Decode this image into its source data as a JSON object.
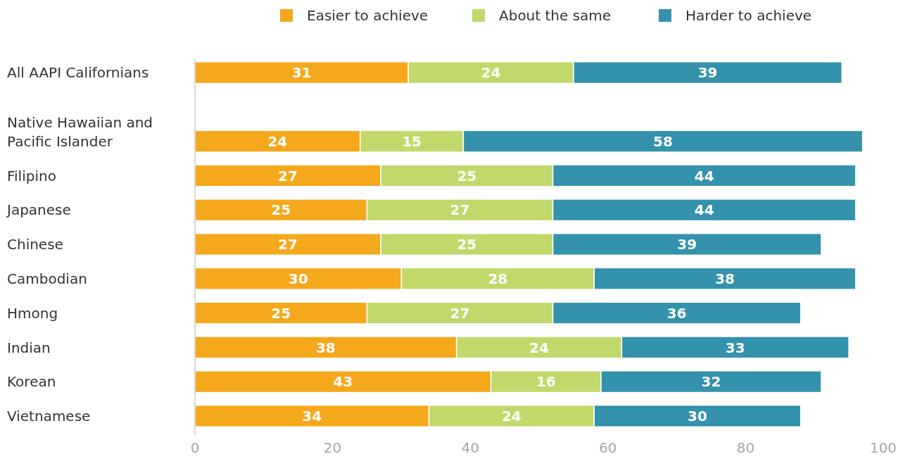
{
  "chart_data": {
    "type": "bar",
    "orientation": "horizontal",
    "stacked": true,
    "data_labels": true,
    "legend": "top",
    "categories": [
      "All AAPI Californians",
      null,
      "Native Hawaiian and Pacific Islander",
      "Filipino",
      "Japanese",
      "Chinese",
      "Cambodian",
      "Hmong",
      "Indian",
      "Korean",
      "Vietnamese"
    ],
    "series": [
      {
        "name": "Easier to achieve",
        "color": "#f5a81c",
        "values": [
          31,
          null,
          24,
          27,
          25,
          27,
          30,
          25,
          38,
          43,
          34
        ]
      },
      {
        "name": "About the same",
        "color": "#c1d96a",
        "values": [
          24,
          null,
          15,
          25,
          27,
          25,
          28,
          27,
          24,
          16,
          24
        ]
      },
      {
        "name": "Harder to achieve",
        "color": "#3592ad",
        "values": [
          39,
          null,
          58,
          44,
          44,
          39,
          38,
          36,
          33,
          32,
          30
        ]
      }
    ],
    "xlim": [
      0,
      100
    ],
    "xticks": [
      0,
      20,
      40,
      60,
      80,
      100
    ]
  }
}
